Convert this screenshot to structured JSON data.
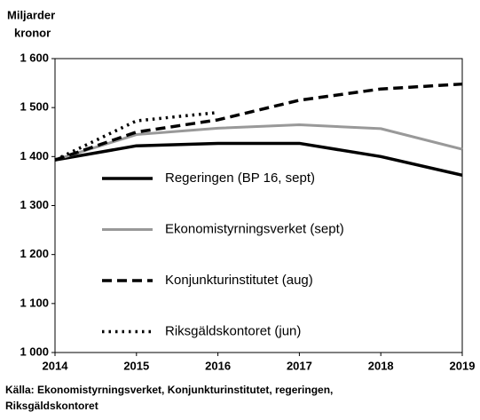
{
  "chart_data": {
    "type": "line",
    "y_label": [
      "Miljarder",
      "kronor"
    ],
    "x": [
      2014,
      2015,
      2016,
      2017,
      2018,
      2019
    ],
    "xlim": [
      2014,
      2019
    ],
    "xticks": [
      2014,
      2015,
      2016,
      2017,
      2018,
      2019
    ],
    "ylim": [
      1000,
      1600
    ],
    "yticks": [
      {
        "value": 1000,
        "label": "1 000"
      },
      {
        "value": 1100,
        "label": "1 100"
      },
      {
        "value": 1200,
        "label": "1 200"
      },
      {
        "value": 1300,
        "label": "1 300"
      },
      {
        "value": 1400,
        "label": "1 400"
      },
      {
        "value": 1500,
        "label": "1 500"
      },
      {
        "value": 1600,
        "label": "1 600"
      }
    ],
    "grid": false,
    "series": [
      {
        "name": "Regeringen (BP 16, sept)",
        "color": "#000000",
        "line_style": "solid",
        "values": [
          1393,
          1422,
          1427,
          1427,
          1400,
          1362
        ]
      },
      {
        "name": "Ekonomistyrningsverket (sept)",
        "color": "#999999",
        "line_style": "double",
        "values": [
          1393,
          1445,
          1458,
          1465,
          1457,
          1415
        ]
      },
      {
        "name": "Konjunkturinstitutet (aug)",
        "color": "#000000",
        "line_style": "dashed",
        "values": [
          1393,
          1450,
          1475,
          1515,
          1538,
          1548
        ]
      },
      {
        "name": "Riksgäldskontoret (jun)",
        "color": "#000000",
        "line_style": "dotted",
        "values": [
          1393,
          1473,
          1490,
          null,
          null,
          null
        ]
      }
    ],
    "source": [
      "Källa: Ekonomistyrningsverket, Konjunkturinstitutet, regeringen,",
      "Riksgäldskontoret"
    ]
  }
}
